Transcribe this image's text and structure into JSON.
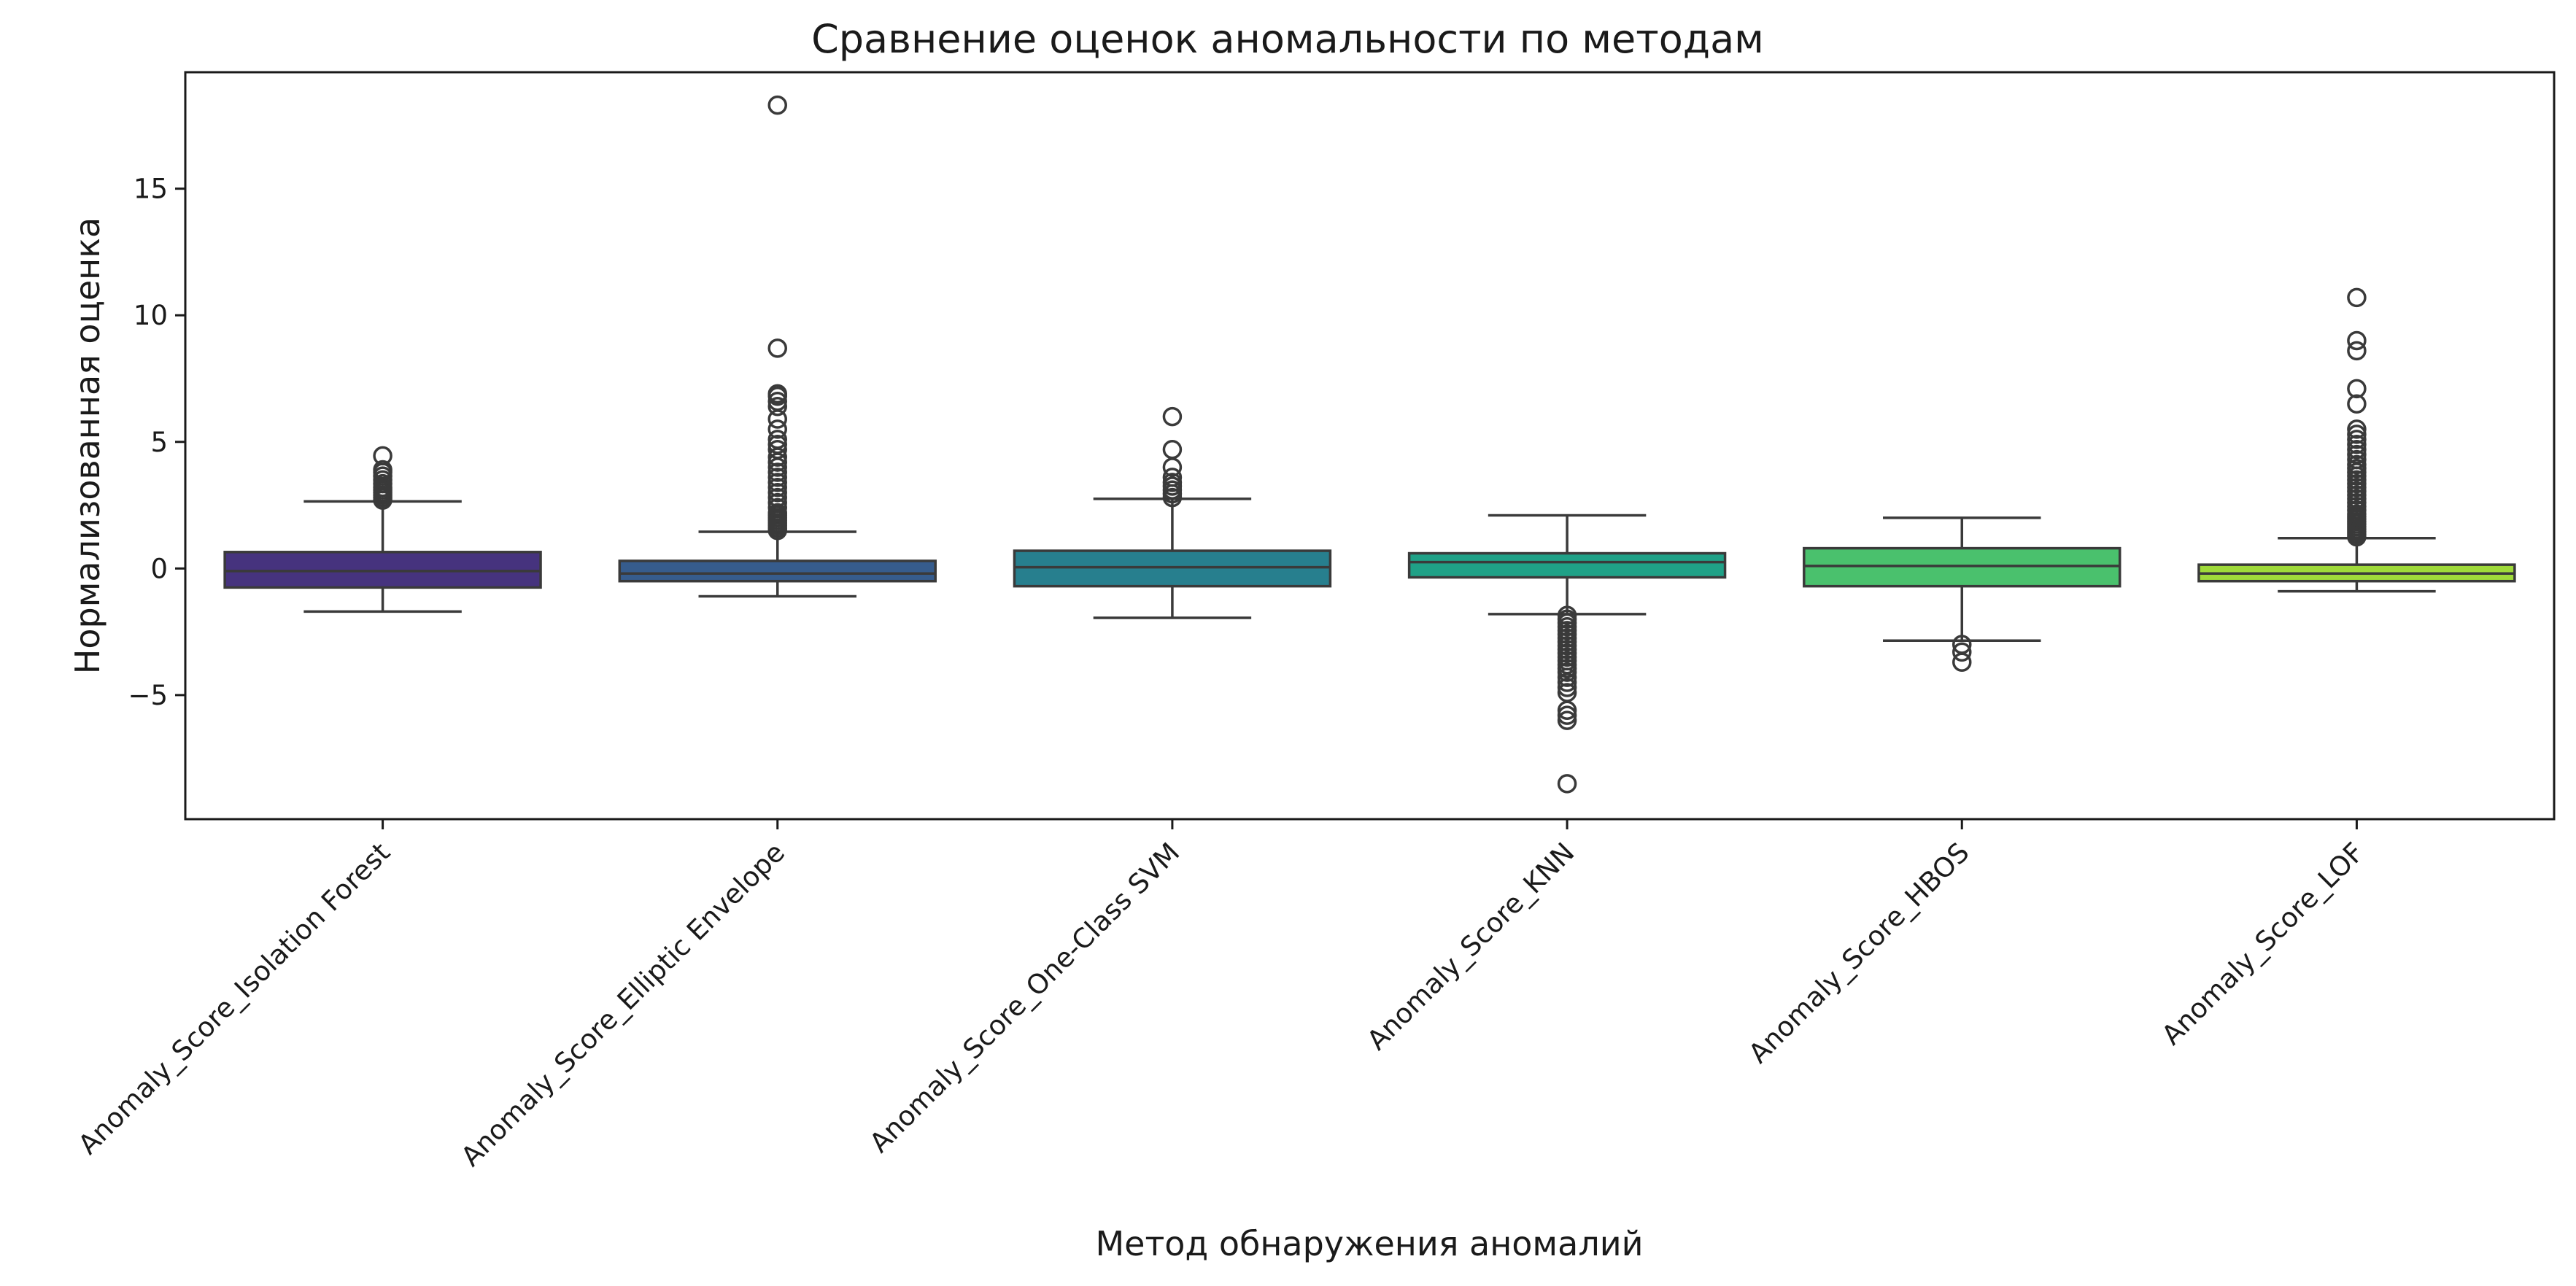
{
  "chart_data": {
    "type": "box",
    "title": "Сравнение оценок аномальности по методам",
    "xlabel": "Метод обнаружения аномалий",
    "ylabel": "Нормализованная оценка",
    "ylim": [
      -9.9,
      19.6
    ],
    "yticks": [
      -5,
      0,
      5,
      10,
      15
    ],
    "ytick_labels": [
      "−5",
      "0",
      "5",
      "10",
      "15"
    ],
    "grid": false,
    "legend": "none",
    "categories": [
      "Anomaly_Score_Isolation Forest",
      "Anomaly_Score_Elliptic Envelope",
      "Anomaly_Score_One-Class SVM",
      "Anomaly_Score_KNN",
      "Anomaly_Score_HBOS",
      "Anomaly_Score_LOF"
    ],
    "colors": [
      "#46337e",
      "#365c8d",
      "#277f8e",
      "#1fa187",
      "#4ac16d",
      "#9fda3a"
    ],
    "boxes": [
      {
        "whislo": -1.7,
        "q1": -0.75,
        "med": -0.1,
        "q3": 0.65,
        "whishi": 2.65,
        "fliers": [
          2.7,
          2.8,
          2.9,
          3.0,
          3.1,
          3.2,
          3.35,
          3.5,
          3.65,
          3.8,
          3.9,
          4.45
        ]
      },
      {
        "whislo": -1.1,
        "q1": -0.5,
        "med": -0.2,
        "q3": 0.3,
        "whishi": 1.45,
        "fliers": [
          1.5,
          1.6,
          1.7,
          1.8,
          1.9,
          2.0,
          2.1,
          2.2,
          2.4,
          2.6,
          2.8,
          3.0,
          3.2,
          3.4,
          3.6,
          3.8,
          4.0,
          4.2,
          4.4,
          4.7,
          4.9,
          5.1,
          5.5,
          5.9,
          6.4,
          6.6,
          6.8,
          6.9,
          8.7,
          18.3
        ]
      },
      {
        "whislo": -1.95,
        "q1": -0.7,
        "med": 0.05,
        "q3": 0.7,
        "whishi": 2.75,
        "fliers": [
          2.8,
          2.95,
          3.1,
          3.25,
          3.4,
          3.6,
          4.0,
          4.7,
          6.0
        ]
      },
      {
        "whislo": -1.8,
        "q1": -0.35,
        "med": 0.25,
        "q3": 0.6,
        "whishi": 2.1,
        "fliers": [
          -1.85,
          -2.0,
          -2.15,
          -2.3,
          -2.45,
          -2.6,
          -2.75,
          -2.9,
          -3.05,
          -3.2,
          -3.35,
          -3.5,
          -3.65,
          -3.8,
          -3.95,
          -4.1,
          -4.3,
          -4.5,
          -4.7,
          -4.9,
          -5.6,
          -5.8,
          -6.0,
          -8.5
        ]
      },
      {
        "whislo": -2.85,
        "q1": -0.7,
        "med": 0.1,
        "q3": 0.8,
        "whishi": 2.0,
        "fliers": [
          -3.0,
          -3.3,
          -3.7
        ]
      },
      {
        "whislo": -0.9,
        "q1": -0.5,
        "med": -0.2,
        "q3": 0.15,
        "whishi": 1.2,
        "fliers": [
          1.25,
          1.35,
          1.45,
          1.55,
          1.65,
          1.75,
          1.85,
          1.95,
          2.05,
          2.15,
          2.3,
          2.45,
          2.6,
          2.75,
          2.9,
          3.05,
          3.2,
          3.35,
          3.5,
          3.65,
          3.8,
          3.95,
          4.1,
          4.3,
          4.5,
          4.7,
          4.9,
          5.1,
          5.3,
          5.5,
          6.5,
          7.1,
          8.6,
          9.0,
          10.7
        ]
      }
    ]
  }
}
